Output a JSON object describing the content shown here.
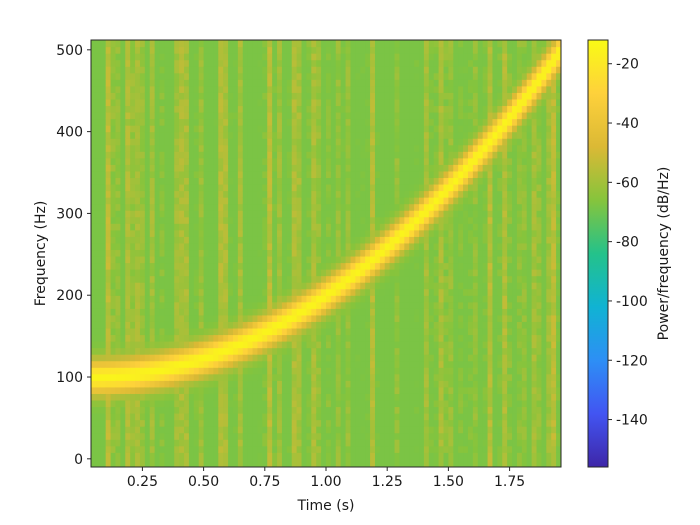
{
  "chart_data": {
    "type": "heatmap",
    "subtype": "spectrogram",
    "title": "",
    "xlabel": "Time (s)",
    "ylabel": "Frequency (Hz)",
    "colorbar_label": "Power/frequency (dB/Hz)",
    "xlim": [
      0.04,
      1.96
    ],
    "ylim": [
      -10,
      512
    ],
    "x_ticks": [
      0.25,
      0.5,
      0.75,
      1.0,
      1.25,
      1.5,
      1.75
    ],
    "x_tick_labels": [
      "0.25",
      "0.50",
      "0.75",
      "1.00",
      "1.25",
      "1.50",
      "1.75"
    ],
    "y_ticks": [
      0,
      100,
      200,
      300,
      400,
      500
    ],
    "y_tick_labels": [
      "0",
      "100",
      "200",
      "300",
      "400",
      "500"
    ],
    "color_range": [
      -156,
      -12
    ],
    "colorbar_ticks": [
      -20,
      -40,
      -60,
      -80,
      -100,
      -120,
      -140
    ],
    "colorbar_tick_labels": [
      "-20",
      "-40",
      "-60",
      "-80",
      "-100",
      "-120",
      "-140"
    ],
    "colormap": "viridis-like (dark blue to yellow)",
    "time_bins": 96,
    "freq_bins": 64,
    "chirp": {
      "description": "quadratic chirp ridge",
      "f_start_hz": 100,
      "f_end_hz": 500,
      "t_start_s": 0.04,
      "t_end_s": 1.96,
      "peak_db": -15,
      "background_db": -68
    }
  },
  "style": {
    "colormap_stops": [
      "#3e26a8",
      "#4255f2",
      "#2d8ff5",
      "#10b3d3",
      "#24c28a",
      "#86c43c",
      "#dbb935",
      "#fed13b",
      "#f9fb15"
    ],
    "axis_color": "#262626"
  }
}
